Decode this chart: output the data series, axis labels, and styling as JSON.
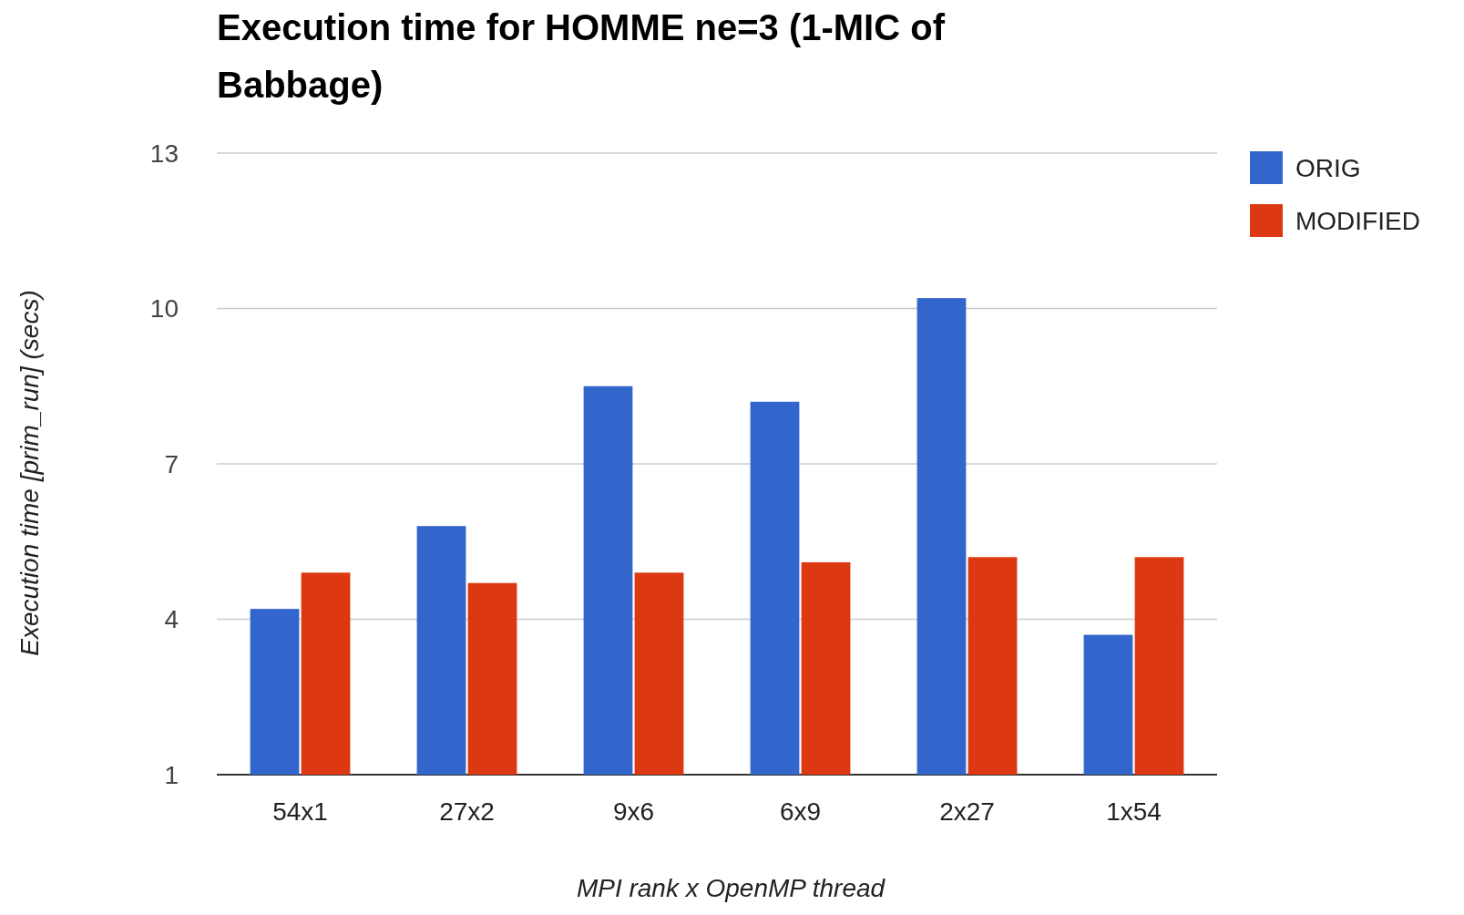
{
  "chart_data": {
    "type": "bar",
    "title": "Execution time for HOMME ne=3 (1-MIC of Babbage)",
    "xlabel": "MPI rank x OpenMP thread",
    "ylabel": "Execution time [prim_run] (secs)",
    "categories": [
      "54x1",
      "27x2",
      "9x6",
      "6x9",
      "2x27",
      "1x54"
    ],
    "series": [
      {
        "name": "ORIG",
        "color": "#3366cc",
        "values": [
          4.2,
          5.8,
          8.5,
          8.2,
          10.2,
          3.7
        ]
      },
      {
        "name": "MODIFIED",
        "color": "#dc3912",
        "values": [
          4.9,
          4.7,
          4.9,
          5.1,
          5.2,
          5.2
        ]
      }
    ],
    "ylim": [
      1,
      13
    ],
    "yticks": [
      1,
      4,
      7,
      10,
      13
    ],
    "grid": true,
    "legend": "top right"
  }
}
